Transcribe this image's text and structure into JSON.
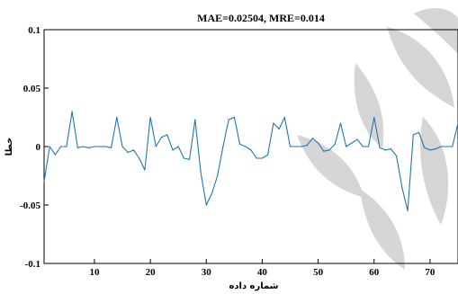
{
  "chart_data": {
    "type": "line",
    "title": "MAE=0.02504, MRE=0.014",
    "xlabel": "شماره داده",
    "ylabel": "خطا",
    "xlim": [
      1,
      75
    ],
    "ylim": [
      -0.1,
      0.1
    ],
    "xticks": [
      10,
      20,
      30,
      40,
      50,
      60,
      70
    ],
    "yticks": [
      -0.1,
      -0.05,
      0,
      0.05,
      0.1
    ],
    "ytick_labels": [
      "-0.1",
      "-0.05",
      "0",
      "0.05",
      "0.1"
    ],
    "grid": false,
    "colors": {
      "line": "#1f77b4",
      "watermark": "#c8c8c8"
    },
    "series": [
      {
        "x": [
          1,
          2,
          3,
          4,
          5,
          6,
          7,
          8,
          9,
          10,
          11,
          12,
          13,
          14,
          15,
          16,
          17,
          18,
          19,
          20,
          21,
          22,
          23,
          24,
          25,
          26,
          27,
          28,
          29,
          30,
          31,
          32,
          33,
          34,
          35,
          36,
          37,
          38,
          39,
          40,
          41,
          42,
          43,
          44,
          45,
          46,
          47,
          48,
          49,
          50,
          51,
          52,
          53,
          54,
          55,
          56,
          57,
          58,
          59,
          60,
          61,
          62,
          63,
          64,
          65,
          66,
          67,
          68,
          69,
          70,
          71,
          72,
          73,
          74,
          75
        ],
        "y": [
          -0.03,
          0,
          -0.007,
          0,
          0,
          0.03,
          -0.001,
          0,
          -0.001,
          0,
          0,
          0,
          -0.001,
          0.025,
          0,
          -0.005,
          -0.003,
          -0.01,
          -0.02,
          0.025,
          0,
          0.008,
          0.01,
          -0.003,
          0,
          -0.01,
          -0.011,
          0.023,
          -0.022,
          -0.05,
          -0.04,
          -0.025,
          0,
          0.023,
          0.025,
          0.002,
          0,
          -0.003,
          -0.01,
          -0.01,
          -0.007,
          0.02,
          0.015,
          0.025,
          0,
          0,
          0,
          0.001,
          0.007,
          0.003,
          -0.004,
          -0.003,
          0.002,
          0.02,
          0,
          0.003,
          0.006,
          0,
          0,
          0.025,
          -0.001,
          -0.003,
          -0.002,
          -0.008,
          -0.035,
          -0.055,
          0.01,
          0.012,
          -0.001,
          -0.003,
          -0.002,
          0,
          0,
          0,
          0.02
        ]
      }
    ]
  }
}
